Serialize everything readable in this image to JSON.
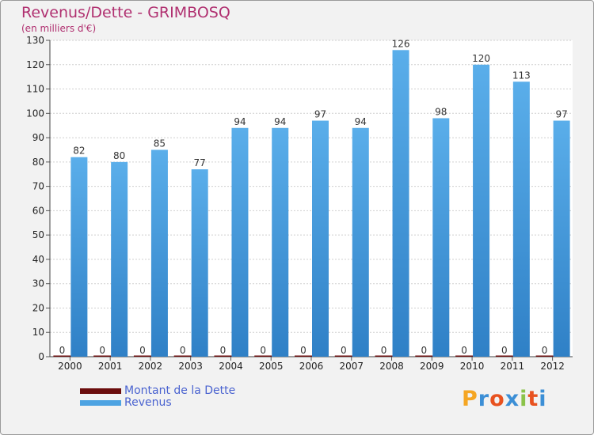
{
  "title": "Revenus/Dette - GRIMBOSQ",
  "subtitle": "(en milliers d'€)",
  "legend": [
    {
      "label": "Montant de la Dette",
      "color": "#6b0d0d"
    },
    {
      "label": "Revenus",
      "color": "#4da3e2"
    }
  ],
  "logo": {
    "text": "Proxiti",
    "letters": [
      "P",
      "r",
      "o",
      "x",
      "i",
      "t",
      "i"
    ],
    "colors": [
      "#f5a623",
      "#3c8fd6",
      "#e8521f",
      "#3c8fd6",
      "#8bc34a",
      "#e8521f",
      "#3c8fd6"
    ]
  },
  "chart_data": {
    "type": "bar",
    "categories": [
      "2000",
      "2001",
      "2002",
      "2003",
      "2004",
      "2005",
      "2006",
      "2007",
      "2008",
      "2009",
      "2010",
      "2011",
      "2012"
    ],
    "series": [
      {
        "name": "Montant de la Dette",
        "color": "#6b0d0d",
        "values": [
          0,
          0,
          0,
          0,
          0,
          0,
          0,
          0,
          0,
          0,
          0,
          0,
          0
        ]
      },
      {
        "name": "Revenus",
        "color": "#4da3e2",
        "values": [
          82,
          80,
          85,
          77,
          94,
          94,
          97,
          94,
          126,
          98,
          120,
          113,
          97
        ]
      }
    ],
    "ylim": [
      0,
      130
    ],
    "yticks": [
      0,
      10,
      20,
      30,
      40,
      50,
      60,
      70,
      80,
      90,
      100,
      110,
      120,
      130
    ],
    "grid": true
  }
}
